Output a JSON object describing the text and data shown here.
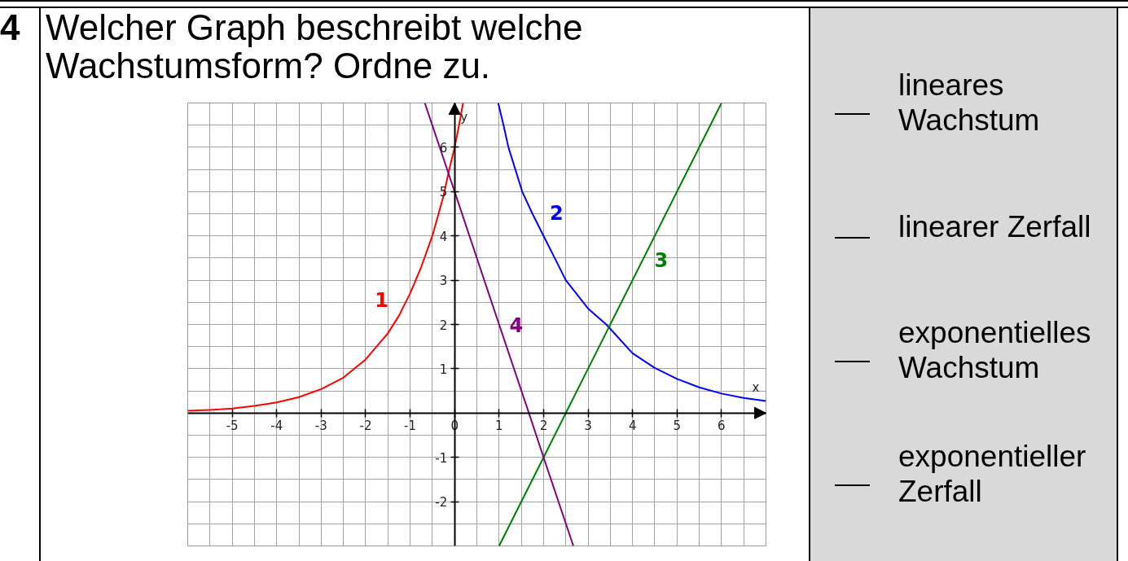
{
  "chart_data": {
    "type": "line",
    "title": "Welcher Graph beschreibt welche Wachstumsform? Ordne zu.",
    "xlabel": "x",
    "ylabel": "y",
    "xlim": [
      -6,
      7
    ],
    "ylim": [
      -3,
      7
    ],
    "xticks": [
      -5,
      -4,
      -3,
      -2,
      -1,
      0,
      1,
      2,
      3,
      4,
      5,
      6
    ],
    "yticks": [
      -2,
      -1,
      1,
      2,
      3,
      4,
      5,
      6
    ],
    "grid": true,
    "series": [
      {
        "name": "1",
        "color": "#ff0000",
        "x": [
          -6,
          -5.5,
          -5,
          -4.5,
          -4,
          -3.5,
          -3,
          -2.5,
          -2,
          -1.5,
          -1.25,
          -1,
          -0.75,
          -0.5,
          -0.25,
          -0.12,
          0,
          0.1,
          0.19
        ],
        "values": [
          0.05,
          0.07,
          0.1,
          0.16,
          0.24,
          0.36,
          0.54,
          0.8,
          1.21,
          1.8,
          2.2,
          2.7,
          3.3,
          4.0,
          4.9,
          5.5,
          6,
          6.5,
          7
        ]
      },
      {
        "name": "2",
        "color": "#0000ff",
        "x": [
          0.98,
          1.1,
          1.21,
          1.52,
          1.75,
          2,
          2.25,
          2.5,
          3,
          3.41,
          4,
          4.5,
          5,
          5.5,
          6,
          6.5,
          7
        ],
        "values": [
          7,
          6.5,
          6,
          5,
          4.5,
          4.0,
          3.5,
          3,
          2.36,
          2,
          1.35,
          1.02,
          0.77,
          0.58,
          0.44,
          0.34,
          0.27
        ]
      },
      {
        "name": "3",
        "color": "#008000",
        "x": [
          1,
          2,
          2.5,
          3,
          4.5,
          6
        ],
        "values": [
          -3,
          -1,
          0,
          1,
          4,
          7
        ]
      },
      {
        "name": "4",
        "color": "#800080",
        "x": [
          -0.67,
          0,
          1,
          1.67,
          2,
          2.67
        ],
        "values": [
          7,
          5,
          2,
          0,
          -1,
          -3
        ]
      }
    ],
    "annotations": [
      "4",
      "lineares Wachstum",
      "linearer Zerfall",
      "exponentielles Wachstum",
      "exponentieller Zerfall"
    ]
  }
}
